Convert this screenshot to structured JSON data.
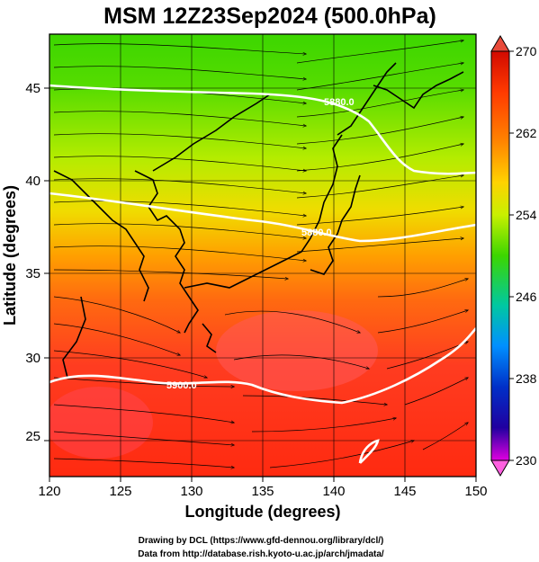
{
  "title": "MSM 12Z23Sep2024 (500.0hPa)",
  "x_axis": {
    "label": "Longitude (degrees)",
    "ticks": [
      "120",
      "125",
      "130",
      "135",
      "140",
      "145",
      "150"
    ]
  },
  "y_axis": {
    "label": "Latitude  (degrees)",
    "ticks": [
      "25",
      "30",
      "35",
      "40",
      "45"
    ]
  },
  "colorbar": {
    "ticks": [
      "270",
      "262",
      "254",
      "246",
      "238",
      "230"
    ],
    "colors": [
      "#d10a00",
      "#ff3a00",
      "#ff8400",
      "#ffd200",
      "#c8f000",
      "#3cd600",
      "#00c8a0",
      "#0090ff",
      "#0030c8",
      "#2000a0",
      "#e000e0"
    ]
  },
  "contour_labels": [
    "5880.0",
    "5880.0",
    "5900.0"
  ],
  "credits": {
    "line1": "Drawing by DCL (https://www.gfd-dennou.org/library/dcl/)",
    "line2": "Data from http://database.rish.kyoto-u.ac.jp/arch/jmadata/"
  },
  "icons": {
    "colorbar_top": "triangle-up-icon",
    "colorbar_bottom": "triangle-down-icon"
  }
}
